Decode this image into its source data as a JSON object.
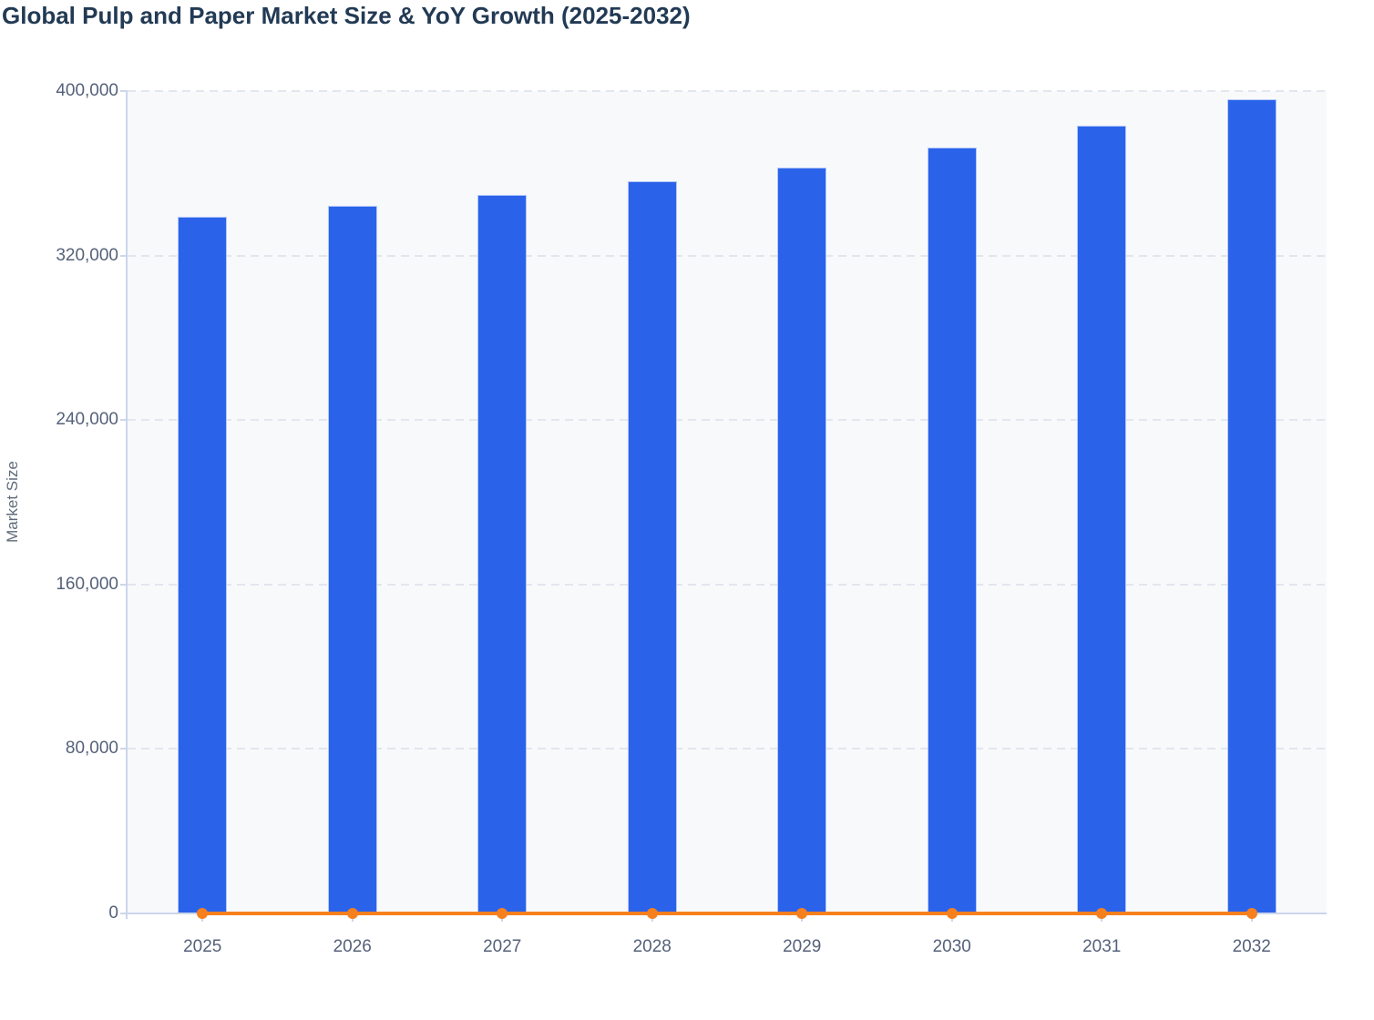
{
  "title": "Global Pulp and Paper Market Size & YoY Growth (2025-2032)",
  "y_axis": {
    "label": "Market Size",
    "ticks": [
      "0",
      "80,000",
      "160,000",
      "240,000",
      "320,000",
      "400,000"
    ]
  },
  "x_axis": {
    "ticks": [
      "2025",
      "2026",
      "2027",
      "2028",
      "2029",
      "2030",
      "2031",
      "2032"
    ]
  },
  "colors": {
    "bar_blue": "#2a63ea",
    "line_orange": "#f7801e",
    "title_navy": "#223a54",
    "axis_line": "#ccd6eb"
  },
  "chart_data": {
    "type": "bar",
    "title": "Global Pulp and Paper Market Size & YoY Growth (2025-2032)",
    "categories": [
      "2025",
      "2026",
      "2027",
      "2028",
      "2029",
      "2030",
      "2031",
      "2032"
    ],
    "series": [
      {
        "name": "Market Size",
        "type": "bar",
        "color": "#2a63ea",
        "values": [
          339000,
          344000,
          349500,
          356000,
          363000,
          372500,
          383000,
          396000
        ]
      },
      {
        "name": "YoY Growth",
        "type": "line",
        "color": "#f7801e",
        "values": [
          0,
          0,
          0,
          0,
          0,
          0,
          0,
          0
        ],
        "render_note": "line with round markers renders flat at ~0 on the left Market Size axis"
      }
    ],
    "xlabel": "",
    "ylabel": "Market Size",
    "ylim": [
      0,
      400000
    ],
    "y_tick_interval": 80000,
    "grid": "horizontal dashed",
    "legend": "none"
  }
}
